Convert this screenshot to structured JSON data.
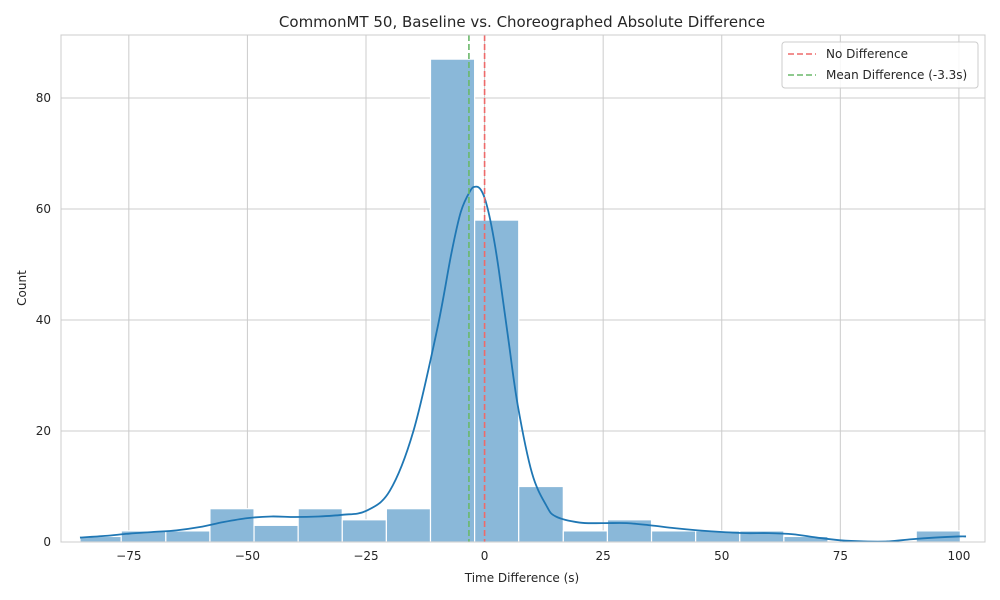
{
  "chart_data": {
    "type": "bar",
    "subtype": "histogram-with-kde",
    "title": "CommonMT 50, Baseline vs. Choreographed Absolute Difference",
    "xlabel": "Time Difference (s)",
    "ylabel": "Count",
    "xlim": [
      -89.3,
      105.5
    ],
    "ylim": [
      0,
      91.35
    ],
    "xticks": [
      -75,
      -50,
      -25,
      0,
      25,
      50,
      75,
      100
    ],
    "xtick_labels": [
      "−75",
      "−50",
      "−25",
      "0",
      "25",
      "50",
      "75",
      "100"
    ],
    "yticks": [
      0,
      20,
      40,
      60,
      80
    ],
    "ytick_labels": [
      "0",
      "20",
      "40",
      "60",
      "80"
    ],
    "grid": true,
    "legend_position": "top-right",
    "bins": [
      {
        "x0": -85.3,
        "x1": -76.6,
        "count": 1
      },
      {
        "x0": -76.6,
        "x1": -67.2,
        "count": 2
      },
      {
        "x0": -67.2,
        "x1": -57.9,
        "count": 2
      },
      {
        "x0": -57.9,
        "x1": -48.6,
        "count": 6
      },
      {
        "x0": -48.6,
        "x1": -39.3,
        "count": 3
      },
      {
        "x0": -39.3,
        "x1": -30.0,
        "count": 6
      },
      {
        "x0": -30.0,
        "x1": -20.7,
        "count": 4
      },
      {
        "x0": -20.7,
        "x1": -11.4,
        "count": 6
      },
      {
        "x0": -11.4,
        "x1": -2.1,
        "count": 87
      },
      {
        "x0": -2.1,
        "x1": 7.2,
        "count": 58
      },
      {
        "x0": 7.2,
        "x1": 16.6,
        "count": 10
      },
      {
        "x0": 16.6,
        "x1": 25.9,
        "count": 2
      },
      {
        "x0": 25.9,
        "x1": 35.2,
        "count": 4
      },
      {
        "x0": 35.2,
        "x1": 44.5,
        "count": 2
      },
      {
        "x0": 44.5,
        "x1": 53.8,
        "count": 2
      },
      {
        "x0": 53.8,
        "x1": 63.1,
        "count": 2
      },
      {
        "x0": 63.1,
        "x1": 72.4,
        "count": 1
      },
      {
        "x0": 72.4,
        "x1": 81.7,
        "count": 0
      },
      {
        "x0": 81.7,
        "x1": 91.0,
        "count": 0
      },
      {
        "x0": 91.0,
        "x1": 100.3,
        "count": 2
      }
    ],
    "kde": {
      "x": [
        -85.3,
        -80,
        -75,
        -70,
        -65,
        -60,
        -55,
        -50,
        -45,
        -40,
        -35,
        -30,
        -25,
        -20,
        -15,
        -10,
        -7,
        -5,
        -3,
        -2,
        -1,
        0,
        1,
        2,
        3,
        5,
        7,
        10,
        13,
        15,
        20,
        25,
        30,
        35,
        40,
        45,
        50,
        55,
        60,
        65,
        70,
        75,
        80,
        85,
        90,
        95,
        100,
        101.5
      ],
      "y": [
        0.8,
        1.1,
        1.5,
        1.8,
        2.1,
        2.7,
        3.6,
        4.3,
        4.6,
        4.5,
        4.6,
        4.9,
        5.6,
        9.2,
        20.0,
        38.3,
        52.0,
        59.5,
        63.3,
        64.0,
        63.7,
        62.0,
        58.8,
        54.4,
        49.0,
        36.6,
        24.6,
        12.4,
        6.6,
        4.6,
        3.5,
        3.4,
        3.4,
        3.0,
        2.5,
        2.1,
        1.8,
        1.6,
        1.6,
        1.4,
        0.8,
        0.3,
        0.1,
        0.1,
        0.5,
        0.8,
        1.0,
        1.0
      ]
    },
    "reference_lines": [
      {
        "name": "No Difference",
        "x": 0,
        "color": "#ee6a6a",
        "style": "dashed"
      },
      {
        "name": "Mean Difference (-3.3s)",
        "x": -3.3,
        "color": "#6ab86a",
        "style": "dashed"
      }
    ],
    "colors": {
      "bar_fill": "#8ab8d9",
      "bar_edge": "#ffffff",
      "kde_line": "#1f77b4",
      "grid": "#cccccc",
      "axes_edge": "#cccccc",
      "text": "#262626"
    }
  }
}
